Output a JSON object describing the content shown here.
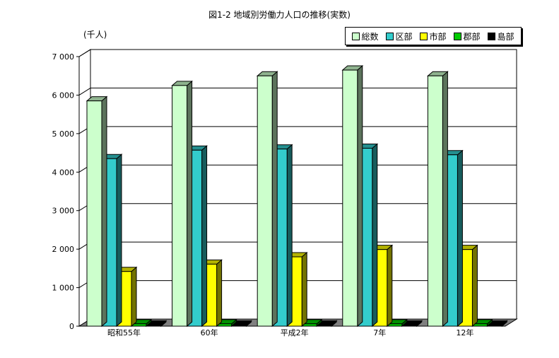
{
  "chart_data": {
    "type": "bar",
    "title": "図1-2 地域別労働力人口の推移(実数)",
    "ylabel": "(千人)",
    "ylim": [
      0,
      7000
    ],
    "yticks": [
      "0",
      "1 000",
      "2 000",
      "3 000",
      "4 000",
      "5 000",
      "6 000",
      "7 000"
    ],
    "ytick_values": [
      0,
      1000,
      2000,
      3000,
      4000,
      5000,
      6000,
      7000
    ],
    "categories": [
      "昭和55年",
      "60年",
      "平成2年",
      "7年",
      "12年"
    ],
    "series": [
      {
        "name": "総数",
        "color": "#ccffcc",
        "values": [
          5850,
          6250,
          6500,
          6650,
          6500
        ]
      },
      {
        "name": "区部",
        "color": "#33cccc",
        "values": [
          4350,
          4570,
          4600,
          4620,
          4450
        ]
      },
      {
        "name": "市部",
        "color": "#ffff00",
        "values": [
          1420,
          1610,
          1800,
          1990,
          1990
        ]
      },
      {
        "name": "郡部",
        "color": "#00cc00",
        "values": [
          60,
          60,
          60,
          60,
          60
        ]
      },
      {
        "name": "島部",
        "color": "#000000",
        "values": [
          30,
          30,
          30,
          30,
          30
        ]
      }
    ],
    "grid": true,
    "legend_position": "top-right"
  }
}
